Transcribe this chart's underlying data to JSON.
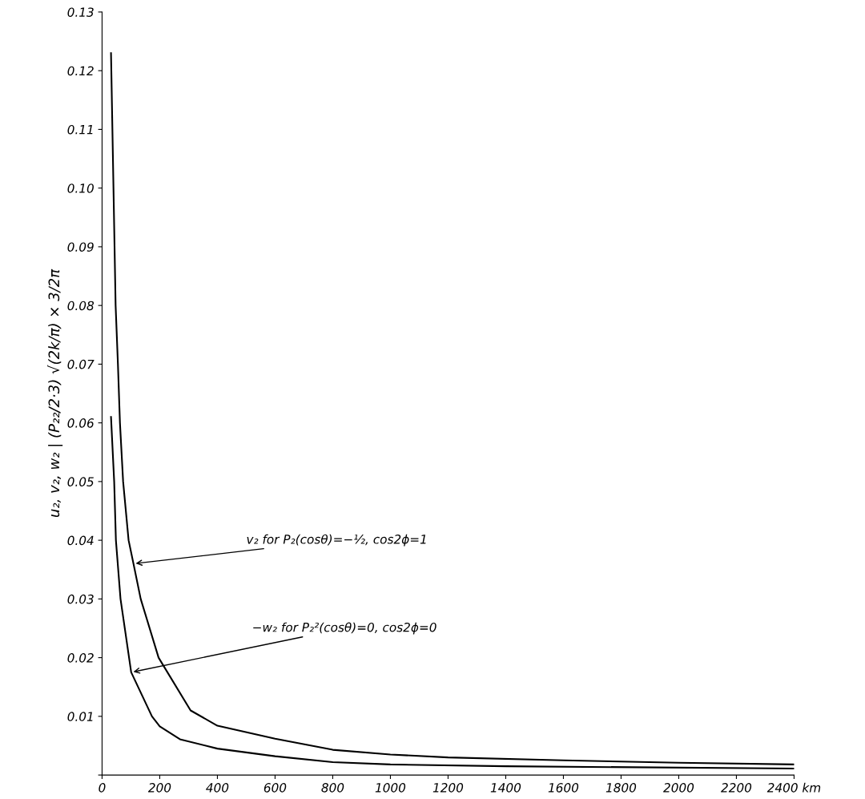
{
  "chart_data": {
    "type": "line",
    "ylabel": "u₂, v₂, w₂ | (P₂₂/2·3) √(2k/π) × 3/2π",
    "series": [
      {
        "color": "#000000",
        "x": [
          31,
          47,
          55,
          62,
          73,
          92,
          109,
          134,
          196,
          307,
          400,
          600,
          800,
          1000,
          1200,
          1600,
          2000,
          2400
        ],
        "values": [
          0.123,
          0.08,
          0.07,
          0.06,
          0.05,
          0.04,
          0.036,
          0.03,
          0.02,
          0.011,
          0.0084,
          0.0062,
          0.0043,
          0.0035,
          0.003,
          0.0025,
          0.0021,
          0.0018
        ]
      },
      {
        "color": "#000000",
        "x": [
          31,
          42,
          48,
          64,
          101,
          173,
          200,
          270,
          400,
          600,
          800,
          1000,
          1400,
          2400
        ],
        "values": [
          0.061,
          0.05,
          0.04,
          0.03,
          0.0175,
          0.01,
          0.0083,
          0.0061,
          0.0045,
          0.0032,
          0.0022,
          0.0018,
          0.0015,
          0.0011
        ]
      }
    ],
    "xlim": [
      0,
      2400
    ],
    "ylim": [
      0,
      0.13
    ],
    "xticks": [
      0,
      200,
      400,
      600,
      800,
      1000,
      1200,
      1400,
      1600,
      1800,
      2000,
      2200,
      {
        "value": 2400,
        "label": "2400 km"
      }
    ],
    "yticks": [
      {
        "value": 0,
        "label": null
      },
      0.01,
      0.02,
      0.03,
      0.04,
      0.05,
      0.06,
      0.07,
      0.08,
      0.09,
      {
        "value": 0.1,
        "label": "0.10"
      },
      0.11,
      0.12,
      0.13
    ],
    "grid": false,
    "marker": "none",
    "line_style": "solid",
    "annotations": [
      {
        "text": "v₂ for P₂(cosθ)=−½, cos2ϕ=1",
        "x": 109,
        "y": 0.036
      },
      {
        "text": "−w₂ for P₂²(cosθ)=0, cos2ϕ=0",
        "x": 101,
        "y": 0.0175
      }
    ]
  }
}
